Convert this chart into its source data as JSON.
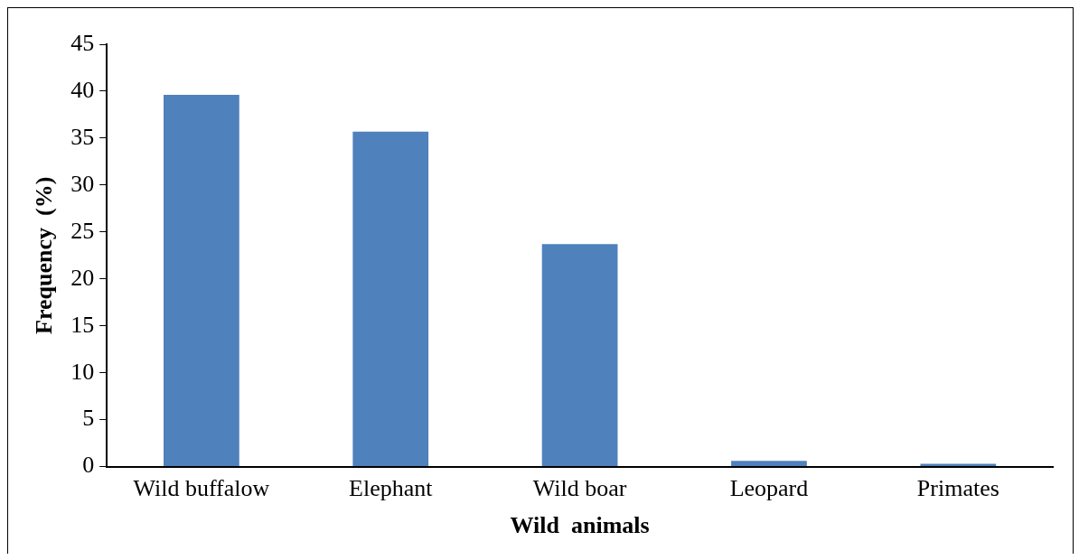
{
  "chart_data": {
    "type": "bar",
    "xlabel": "Wild  animals",
    "ylabel": "Frequency  (%)",
    "categories": [
      "Wild buffalow",
      "Elephant",
      "Wild boar",
      "Leopard",
      "Primates"
    ],
    "values": [
      39.6,
      35.7,
      23.7,
      0.6,
      0.3
    ],
    "color": "#4f81bd",
    "ylim": [
      0,
      45
    ],
    "yticks": [
      0,
      5,
      10,
      15,
      20,
      25,
      30,
      35,
      40,
      45
    ],
    "grid": false,
    "legend": false
  }
}
